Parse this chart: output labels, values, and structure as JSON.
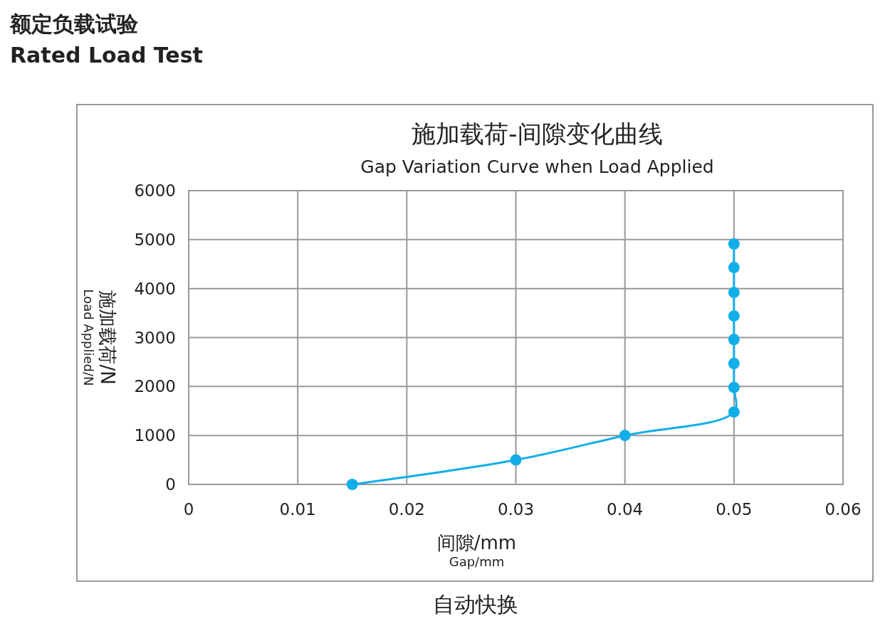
{
  "chart_data": {
    "type": "line",
    "title": "施加载荷-间隙变化曲线",
    "subtitle": "Gap Variation Curve when Load Applied",
    "xlabel": "间隙/mm\nGap/mm",
    "ylabel": "施加载荷/N\nLoad Applied/N",
    "annotations": [
      "额定负载试验",
      "Rated Load Test",
      "自动快换"
    ],
    "series": [
      {
        "color": "#12aee8",
        "x": [
          0.015,
          0.03,
          0.04,
          0.05,
          0.05,
          0.05,
          0.05,
          0.05,
          0.05,
          0.05,
          0.05
        ],
        "values": [
          0,
          500,
          1000,
          1480,
          1980,
          2470,
          2960,
          3440,
          3920,
          4430,
          4910
        ]
      }
    ],
    "xlim": [
      0,
      0.06
    ],
    "xticks": [
      0,
      0.01,
      0.02,
      0.03,
      0.04,
      0.05,
      0.06
    ],
    "ylim": [
      0,
      6000
    ],
    "yticks": [
      0,
      1000,
      2000,
      3000,
      4000,
      5000,
      6000
    ],
    "grid": true,
    "marker": "circle",
    "line_style": "solid"
  }
}
